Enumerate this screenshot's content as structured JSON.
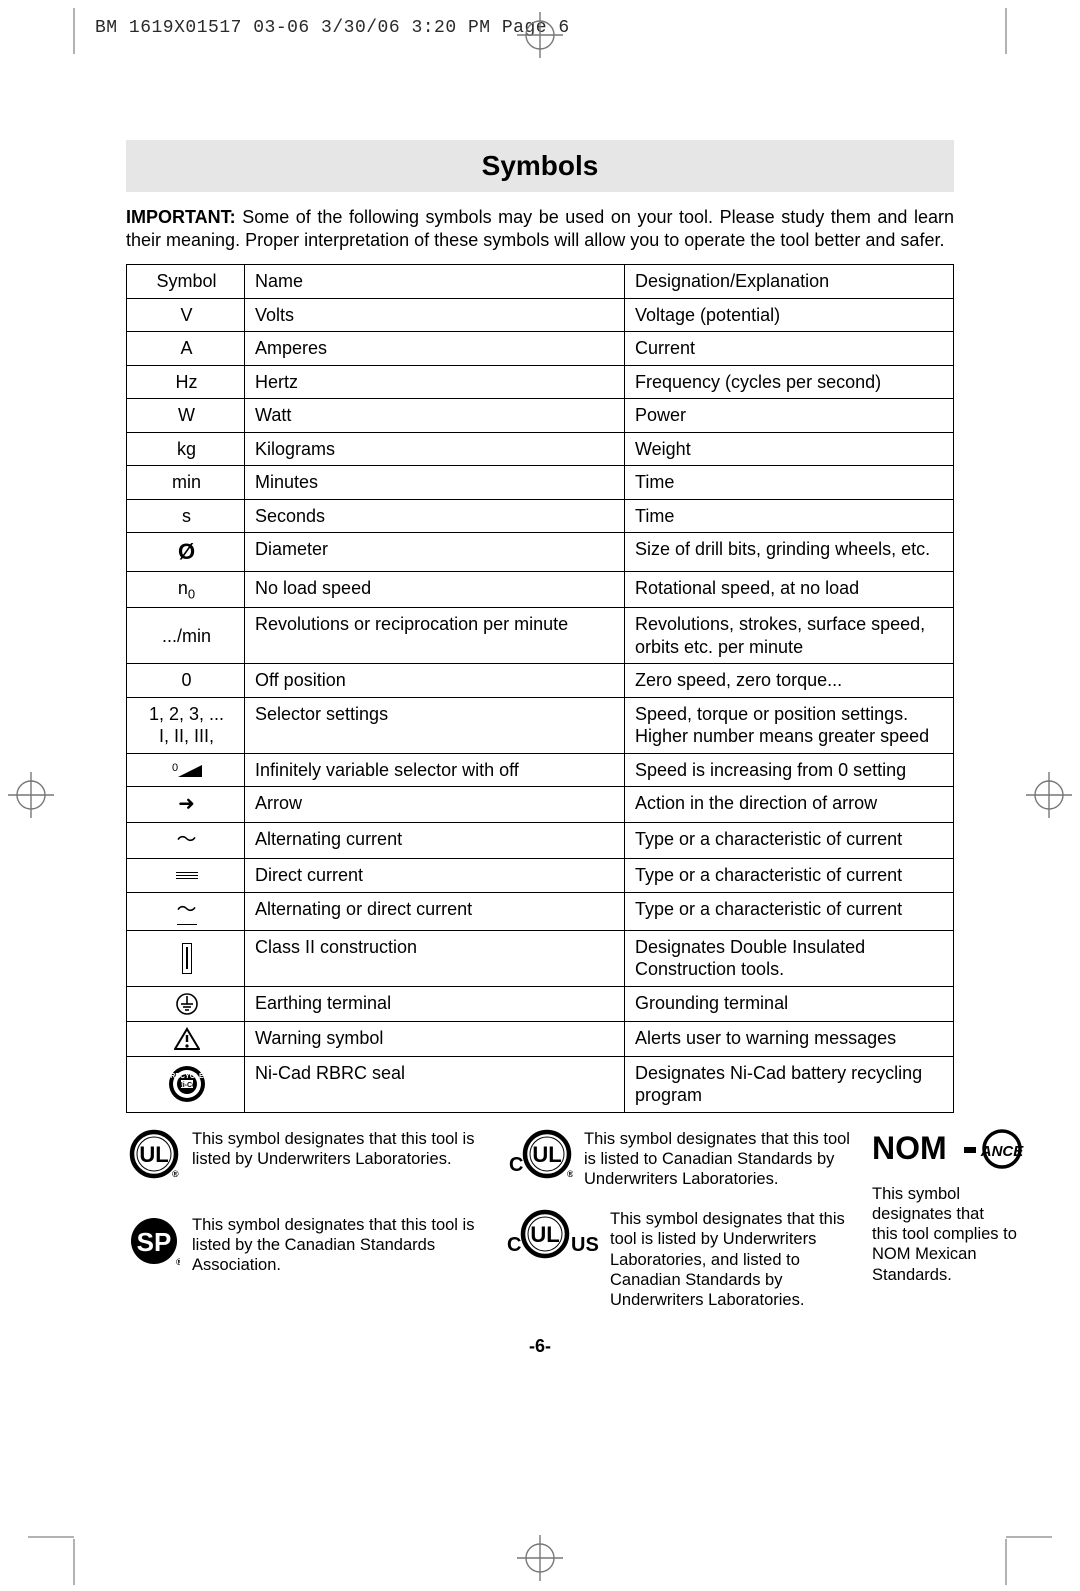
{
  "header_line": "BM 1619X01517 03-06  3/30/06  3:20 PM  Page 6",
  "section_title": "Symbols",
  "intro_strong": "IMPORTANT:",
  "intro_text": " Some of the following symbols may be used on your tool.  Please study them and learn their meaning.  Proper interpretation of these symbols will allow you to operate the tool better and safer.",
  "columns": {
    "c0": "Symbol",
    "c1": "Name",
    "c2": "Designation/Explanation"
  },
  "rows": [
    {
      "sym": "V",
      "name": "Volts",
      "desc": "Voltage (potential)"
    },
    {
      "sym": "A",
      "name": "Amperes",
      "desc": "Current"
    },
    {
      "sym": "Hz",
      "name": "Hertz",
      "desc": "Frequency (cycles per second)"
    },
    {
      "sym": "W",
      "name": "Watt",
      "desc": "Power"
    },
    {
      "sym": "kg",
      "name": "Kilograms",
      "desc": "Weight"
    },
    {
      "sym": "min",
      "name": "Minutes",
      "desc": "Time"
    },
    {
      "sym": "s",
      "name": "Seconds",
      "desc": "Time"
    },
    {
      "sym": "diameter",
      "name": "Diameter",
      "desc": "Size of drill bits, grinding wheels,  etc."
    },
    {
      "sym": "n0",
      "name": "No load speed",
      "desc": "Rotational speed, at no load"
    },
    {
      "sym": ".../min",
      "name": "Revolutions or reciprocation per minute",
      "desc": "Revolutions, strokes, surface speed, orbits etc. per minute"
    },
    {
      "sym": "0",
      "name": "Off position",
      "desc": "Zero speed, zero torque..."
    },
    {
      "sym": "1, 2, 3, ...\nI, II, III,",
      "name": "Selector settings",
      "desc": "Speed, torque or position settings. Higher number means greater speed"
    },
    {
      "sym": "variable",
      "name": "Infinitely variable selector with off",
      "desc": "Speed is increasing from 0 setting"
    },
    {
      "sym": "arrow",
      "name": "Arrow",
      "desc": "Action in the direction of arrow"
    },
    {
      "sym": "ac",
      "name": "Alternating current",
      "desc": "Type or a characteristic of current"
    },
    {
      "sym": "dc",
      "name": "Direct current",
      "desc": "Type or a characteristic of current"
    },
    {
      "sym": "acdc",
      "name": "Alternating or direct current",
      "desc": "Type or a characteristic of current"
    },
    {
      "sym": "class2",
      "name": "Class II  construction",
      "desc": "Designates Double Insulated Construction tools."
    },
    {
      "sym": "earth",
      "name": "Earthing terminal",
      "desc": "Grounding terminal"
    },
    {
      "sym": "warn",
      "name": "Warning symbol",
      "desc": "Alerts user to warning messages"
    },
    {
      "sym": "rbrc",
      "name": "Ni-Cad RBRC seal",
      "desc": "Designates Ni-Cad battery recycling program"
    }
  ],
  "cert": {
    "ul": "This symbol designates that this tool is listed by Underwriters Laboratories.",
    "csa": "This symbol designates that this tool is listed by the Canadian Standards Association.",
    "cul": "This symbol designates that this tool is listed to Canadian Standards by Underwriters Laboratories.",
    "culus": "This symbol designates that this tool is listed by Underwriters Laboratories, and listed to Canadian Standards by Underwriters Laboratories.",
    "nom": "This symbol designates that\nthis tool complies to NOM Mexican Standards."
  },
  "page_number": "-6-",
  "colors": {
    "title_bg": "#e6e6e6",
    "text": "#000000",
    "header": "#2a2a2a"
  }
}
